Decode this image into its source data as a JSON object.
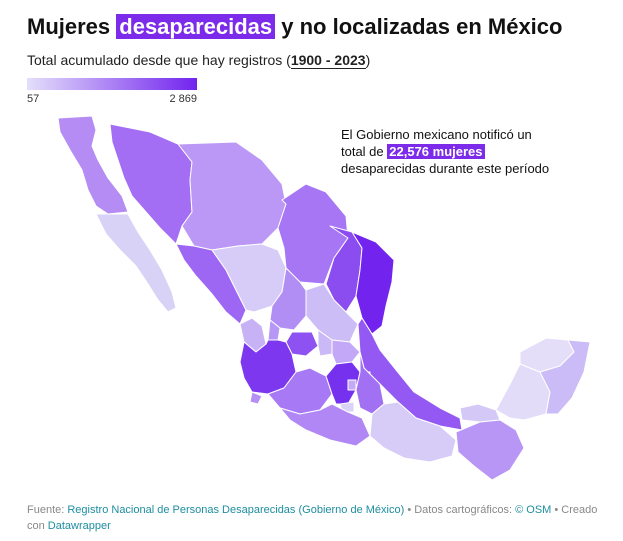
{
  "title": {
    "before": "Mujeres ",
    "highlight": "desaparecidas",
    "after": " y no localizadas en México"
  },
  "subtitle": {
    "before": "Total acumulado desde que hay registros (",
    "range": "1900 - 2023",
    "after": ")"
  },
  "legend": {
    "min_label": "57",
    "max_label": "2 869",
    "min_value": 57,
    "max_value": 2869,
    "color_low": "#e4dffb",
    "color_high": "#7223ee"
  },
  "annotation": {
    "before": "El Gobierno mexicano notificó un total de ",
    "highlight": "22,576 mujeres",
    "after": " desaparecidas durante este período"
  },
  "footer": {
    "source_label": "Fuente: ",
    "source_link": "Registro Nacional de Personas Desaparecidas (Gobierno de México)",
    "carto_label": " • Datos cartográficos: ",
    "carto_link": "© OSM",
    "created_label": " • Creado con ",
    "created_link": "Datawrapper"
  },
  "colors": {
    "highlight": "#7c2bea",
    "link": "#1d8ea0",
    "border": "#ffffff",
    "water": "#ffffff"
  }
}
